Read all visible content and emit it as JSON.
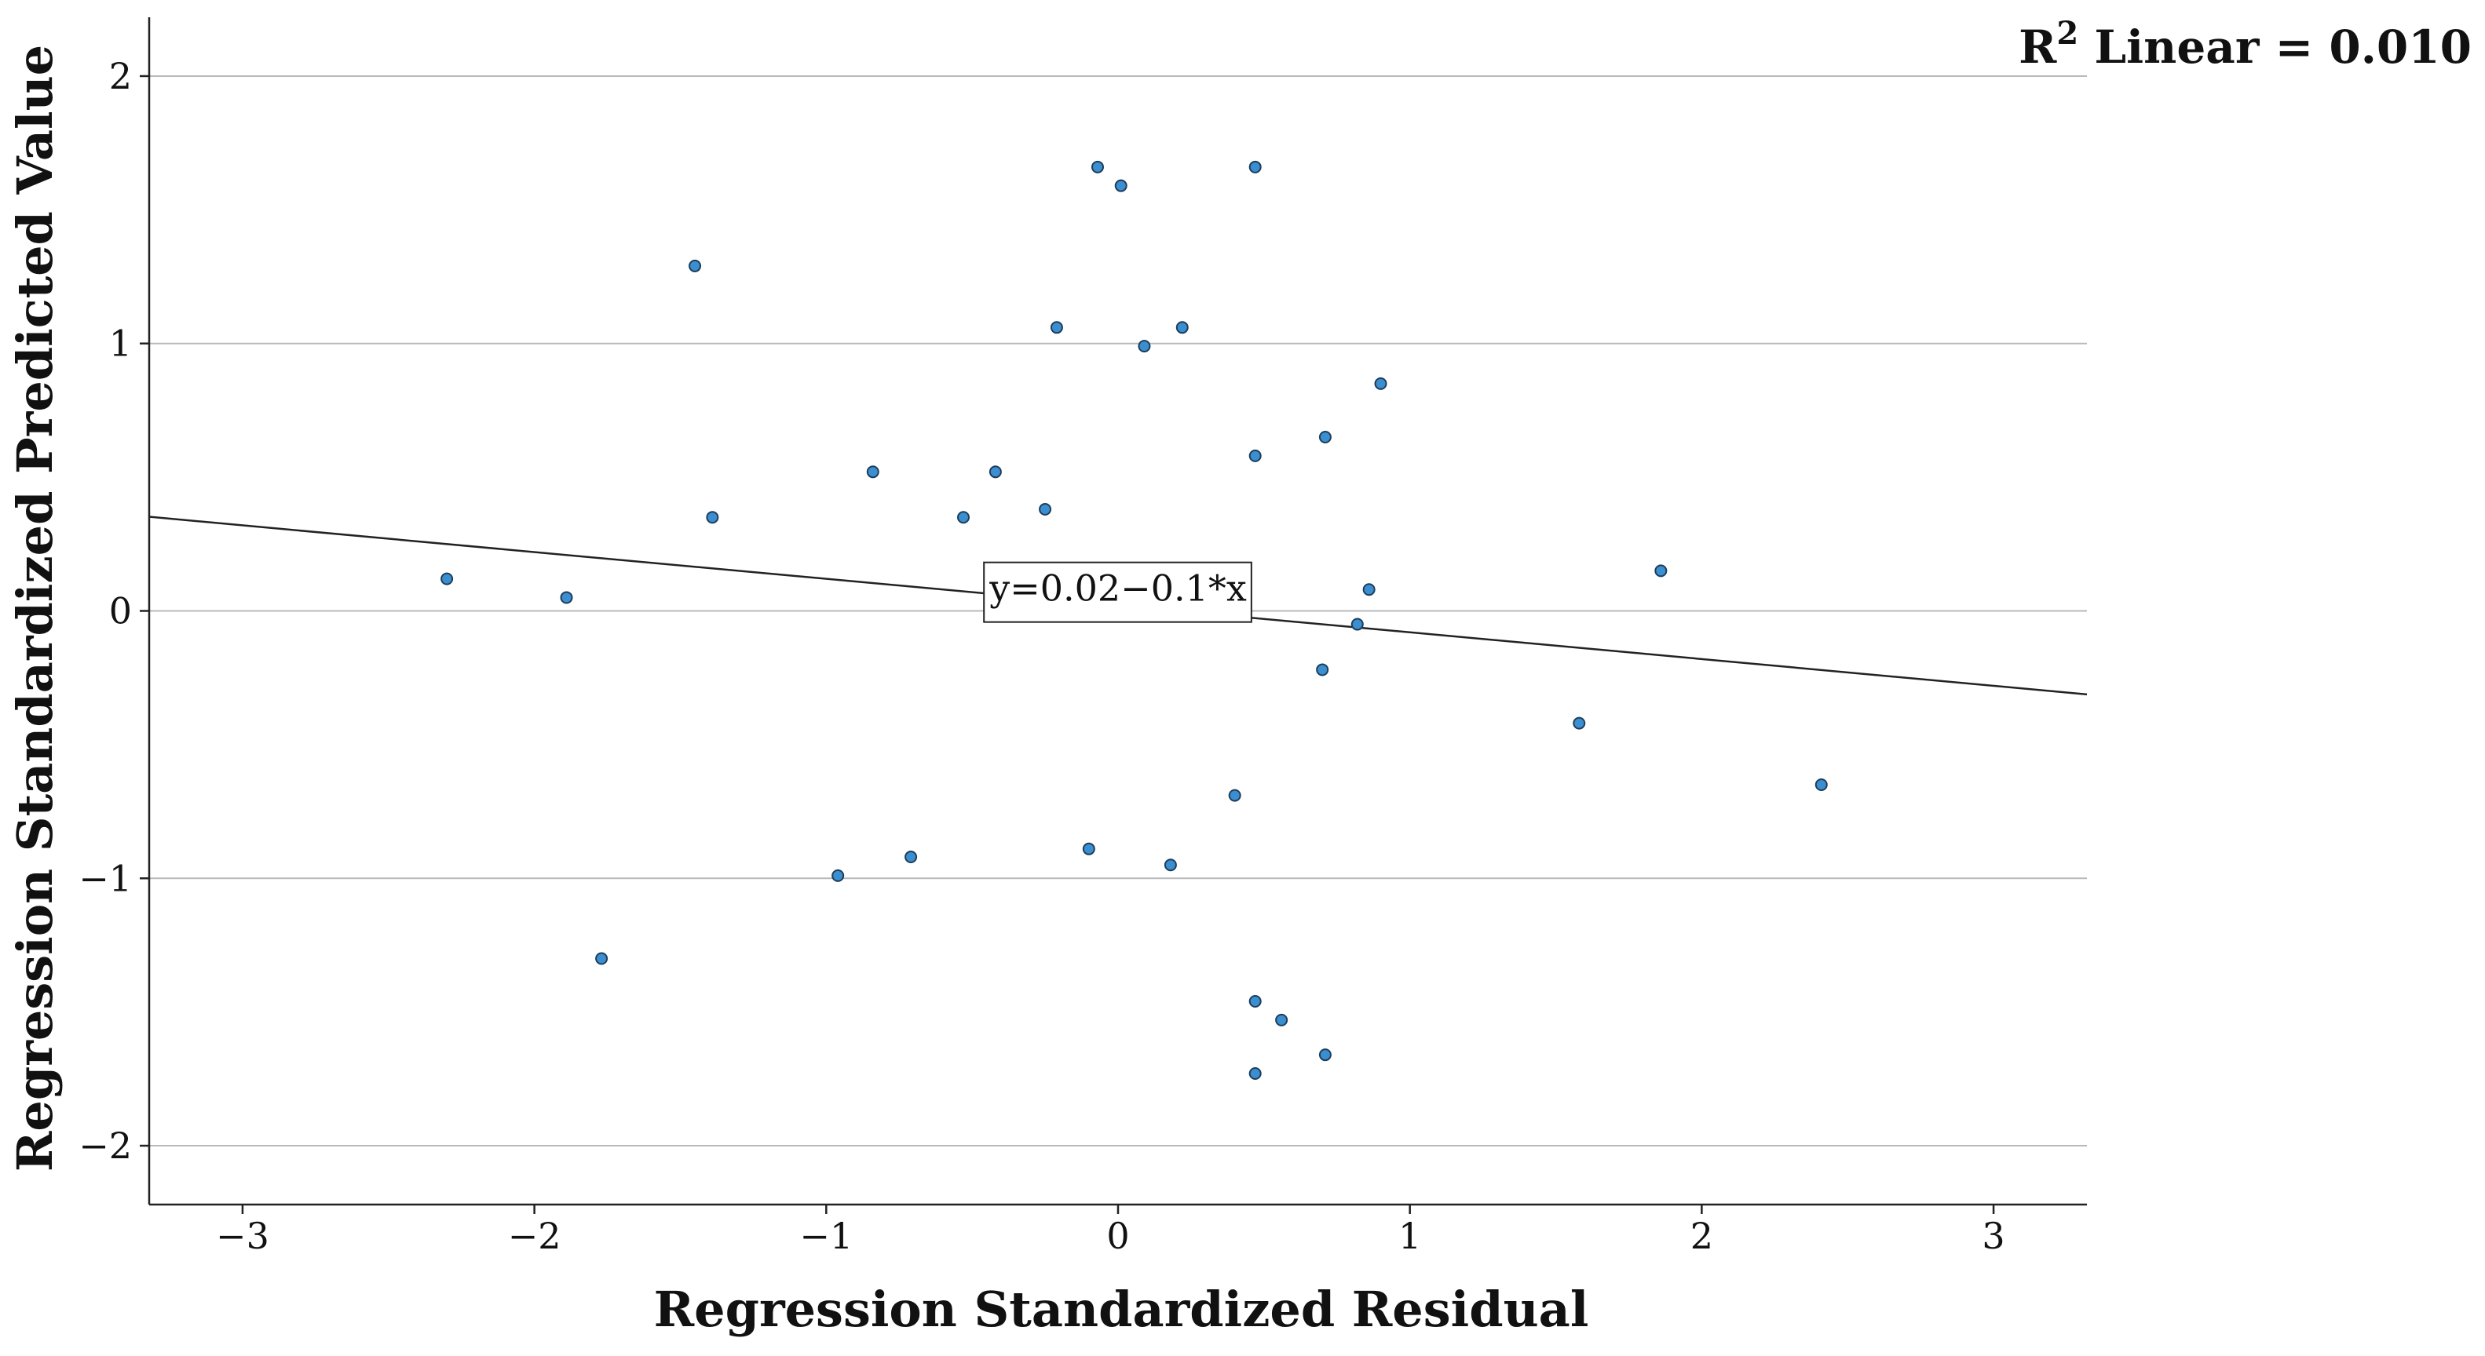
{
  "chart_data": {
    "type": "scatter",
    "title": "",
    "xlabel": "Regression Standardized Residual",
    "ylabel": "Regression Standardized Predicted Value",
    "xlim": [
      -3.32,
      3.32
    ],
    "ylim": [
      -2.22,
      2.22
    ],
    "x_ticks": [
      -3,
      -2,
      -1,
      0,
      1,
      2,
      3
    ],
    "y_ticks": [
      -2,
      -1,
      0,
      1,
      2
    ],
    "x_tick_labels": [
      "−3",
      "−2",
      "−1",
      "0",
      "1",
      "2",
      "3"
    ],
    "y_tick_labels": [
      "−2",
      "−1",
      "0",
      "1",
      "2"
    ],
    "grid": "horizontal",
    "r2_label": {
      "prefix": "R",
      "sup": "2",
      "suffix": " Linear = 0.010"
    },
    "fit_line": {
      "intercept": 0.02,
      "slope": -0.1,
      "label": "y=0.02−0.1*x"
    },
    "marker_color": "#3b8fd0",
    "points": [
      {
        "x": -0.07,
        "y": 1.66
      },
      {
        "x": 0.47,
        "y": 1.66
      },
      {
        "x": 0.01,
        "y": 1.59
      },
      {
        "x": -1.45,
        "y": 1.29
      },
      {
        "x": -0.21,
        "y": 1.06
      },
      {
        "x": 0.22,
        "y": 1.06
      },
      {
        "x": 0.09,
        "y": 0.99
      },
      {
        "x": 0.9,
        "y": 0.85
      },
      {
        "x": 0.71,
        "y": 0.65
      },
      {
        "x": 0.47,
        "y": 0.58
      },
      {
        "x": -0.84,
        "y": 0.52
      },
      {
        "x": -0.42,
        "y": 0.52
      },
      {
        "x": -1.39,
        "y": 0.35
      },
      {
        "x": -0.53,
        "y": 0.35
      },
      {
        "x": -0.25,
        "y": 0.38
      },
      {
        "x": -2.3,
        "y": 0.12
      },
      {
        "x": -1.89,
        "y": 0.05
      },
      {
        "x": 1.86,
        "y": 0.15
      },
      {
        "x": 0.86,
        "y": 0.08
      },
      {
        "x": 0.82,
        "y": -0.05
      },
      {
        "x": 0.7,
        "y": -0.22
      },
      {
        "x": 1.58,
        "y": -0.42
      },
      {
        "x": 2.41,
        "y": -0.65
      },
      {
        "x": 0.4,
        "y": -0.69
      },
      {
        "x": -0.1,
        "y": -0.89
      },
      {
        "x": 0.18,
        "y": -0.95
      },
      {
        "x": -0.71,
        "y": -0.92
      },
      {
        "x": -0.96,
        "y": -0.99
      },
      {
        "x": -1.77,
        "y": -1.3
      },
      {
        "x": 0.47,
        "y": -1.46
      },
      {
        "x": 0.56,
        "y": -1.53
      },
      {
        "x": 0.71,
        "y": -1.66
      },
      {
        "x": 0.47,
        "y": -1.73
      }
    ]
  }
}
